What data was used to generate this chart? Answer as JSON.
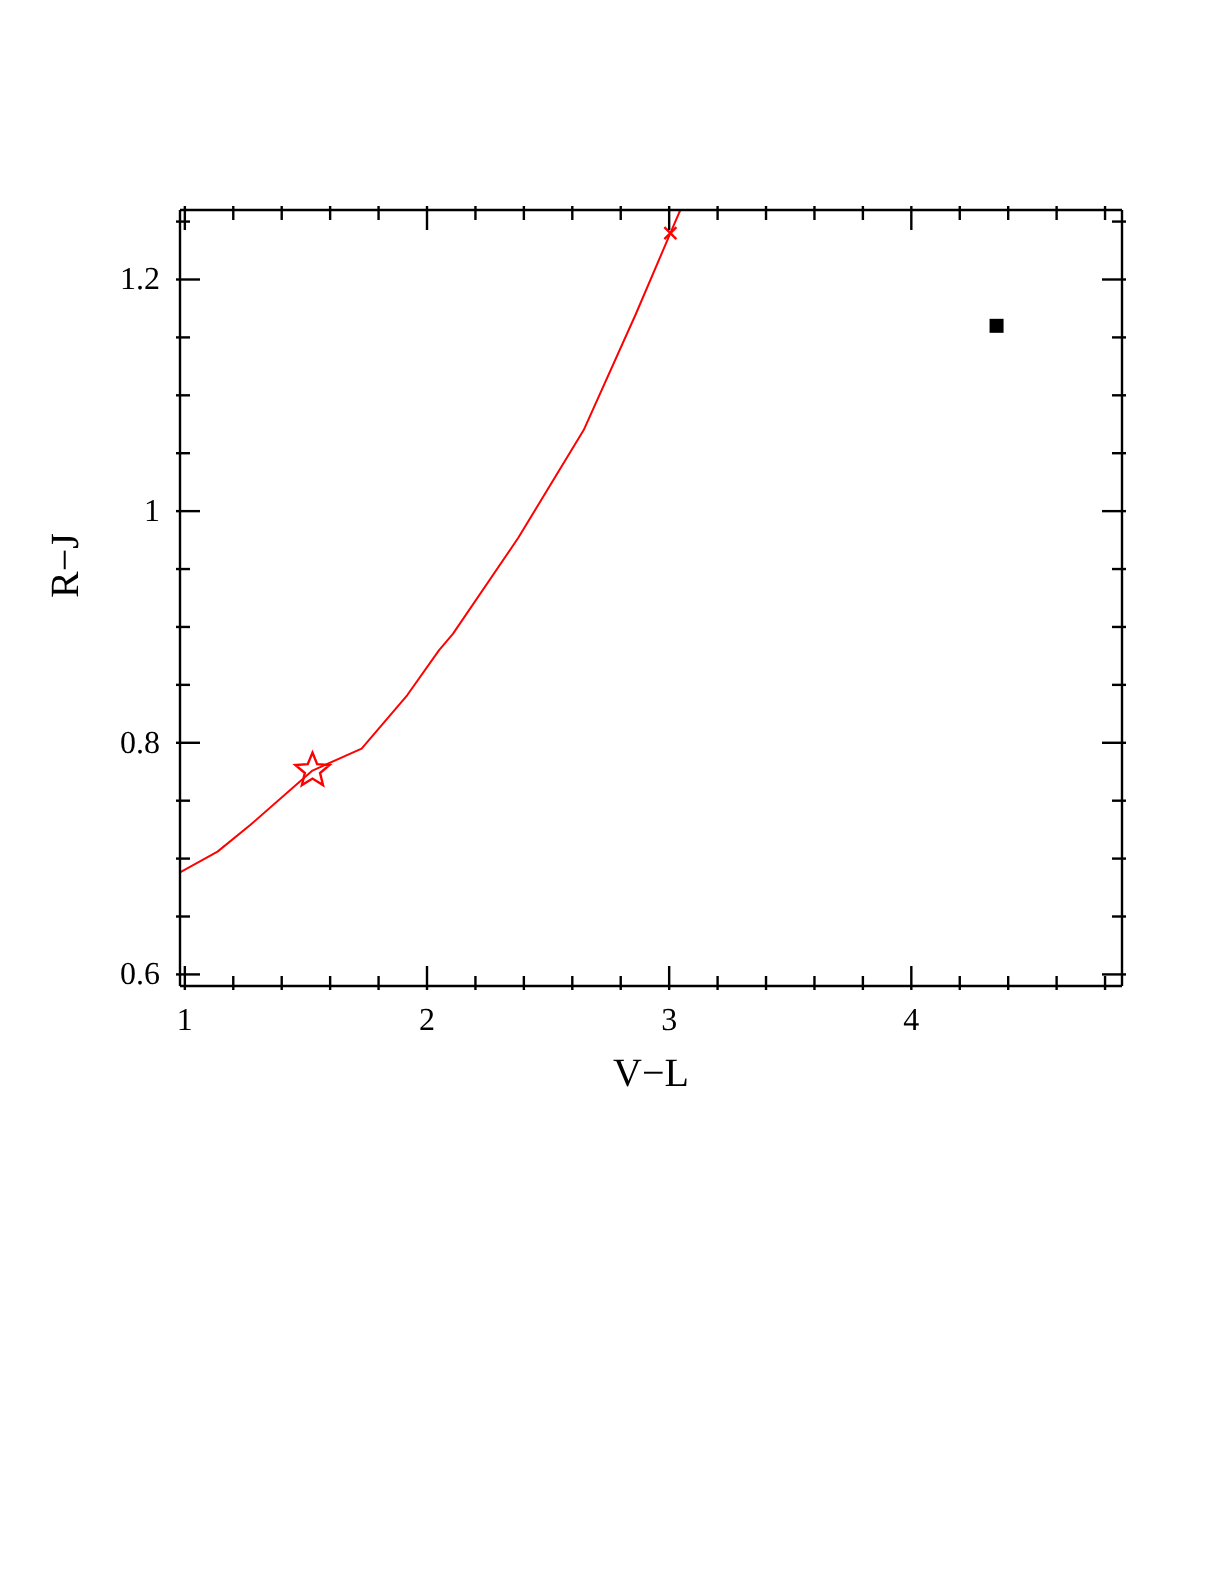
{
  "chart_data": {
    "type": "scatter",
    "xlabel": "V−L",
    "ylabel": "R−J",
    "xlim": [
      0.98,
      4.87
    ],
    "ylim": [
      0.59,
      1.26
    ],
    "xticks": [
      1,
      {
        "value": 1.2,
        "label": null
      },
      {
        "value": 1.4,
        "label": null
      },
      {
        "value": 1.6,
        "label": null
      },
      {
        "value": 1.8,
        "label": null
      },
      2,
      {
        "value": 2.2,
        "label": null
      },
      {
        "value": 2.4,
        "label": null
      },
      {
        "value": 2.6,
        "label": null
      },
      {
        "value": 2.8,
        "label": null
      },
      3,
      {
        "value": 3.2,
        "label": null
      },
      {
        "value": 3.4,
        "label": null
      },
      {
        "value": 3.6,
        "label": null
      },
      {
        "value": 3.8,
        "label": null
      },
      4,
      {
        "value": 4.2,
        "label": null
      },
      {
        "value": 4.4,
        "label": null
      },
      {
        "value": 4.6,
        "label": null
      },
      {
        "value": 4.8,
        "label": null
      }
    ],
    "yticks": [
      0.6,
      {
        "value": 0.65,
        "label": null
      },
      {
        "value": 0.7,
        "label": null
      },
      {
        "value": 0.75,
        "label": null
      },
      0.8,
      {
        "value": 0.85,
        "label": null
      },
      {
        "value": 0.9,
        "label": null
      },
      {
        "value": 0.95,
        "label": null
      },
      1,
      {
        "value": 1.05,
        "label": null
      },
      {
        "value": 1.1,
        "label": null
      },
      {
        "value": 1.15,
        "label": null
      },
      1.2,
      {
        "value": 1.25,
        "label": null
      }
    ],
    "series": [
      {
        "type": "line",
        "color": "#ff0000",
        "marker": "none",
        "line_style": "solid",
        "x": [
          0.98,
          1.135,
          1.27,
          1.527,
          1.73,
          1.918,
          2.05,
          2.107,
          2.377,
          2.647,
          2.862,
          3.005,
          3.046
        ],
        "values": [
          0.688,
          0.706,
          0.729,
          0.776,
          0.795,
          0.841,
          0.88,
          0.894,
          0.977,
          1.07,
          1.17,
          1.24,
          1.26
        ]
      },
      {
        "color": "#ff0000",
        "marker": "star",
        "x": [
          1.527
        ],
        "values": [
          0.776
        ]
      },
      {
        "color": "#ff0000",
        "marker": "cross",
        "x": [
          3.005
        ],
        "values": [
          1.24
        ]
      },
      {
        "color": "#000000",
        "marker": "square",
        "x": [
          4.352
        ],
        "values": [
          1.16
        ]
      }
    ]
  }
}
